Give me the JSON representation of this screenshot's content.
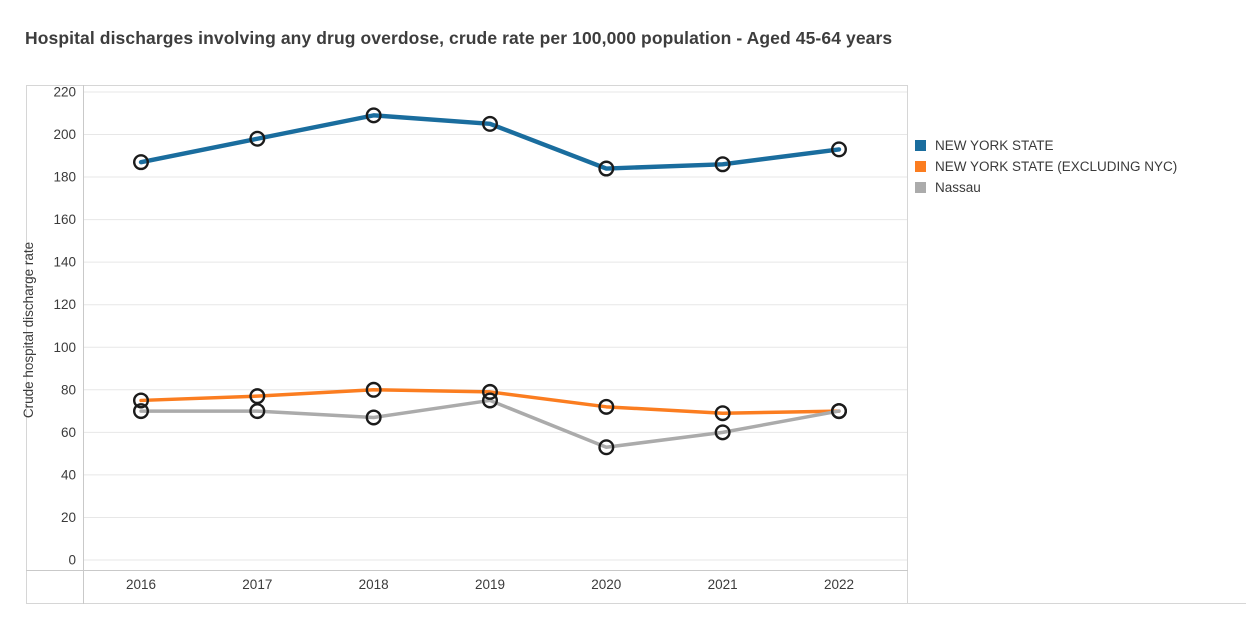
{
  "title": "Hospital discharges involving any drug overdose, crude rate per 100,000 population - Aged 45-64 years",
  "chart_data": {
    "type": "line",
    "title": "Hospital discharges involving any drug overdose, crude rate per 100,000 population - Aged 45-64 years",
    "categories": [
      "2016",
      "2017",
      "2018",
      "2019",
      "2020",
      "2021",
      "2022"
    ],
    "series": [
      {
        "name": "NEW YORK STATE",
        "color": "#1a6d9e",
        "values": [
          187,
          198,
          209,
          205,
          184,
          186,
          193
        ]
      },
      {
        "name": "NEW YORK STATE (EXCLUDING NYC)",
        "color": "#fb7d20",
        "values": [
          75,
          77,
          80,
          79,
          72,
          69,
          70
        ]
      },
      {
        "name": "Nassau",
        "color": "#ababab",
        "values": [
          70,
          70,
          67,
          75,
          53,
          60,
          70
        ]
      }
    ],
    "xlabel": "",
    "ylabel": "Crude hospital discharge rate",
    "ylim": [
      0,
      220
    ],
    "yticks": [
      0,
      20,
      40,
      60,
      80,
      100,
      120,
      140,
      160,
      180,
      200,
      220
    ],
    "grid": true,
    "legend_position": "right",
    "marker": "open-circle"
  },
  "style": {
    "grid_color": "#e7e7e7",
    "border_color": "#d6d6d6",
    "axis_color": "#c9c9c9",
    "tick_text_color": "#3b3b3b",
    "marker_ring_color": "#1b1b1b"
  }
}
